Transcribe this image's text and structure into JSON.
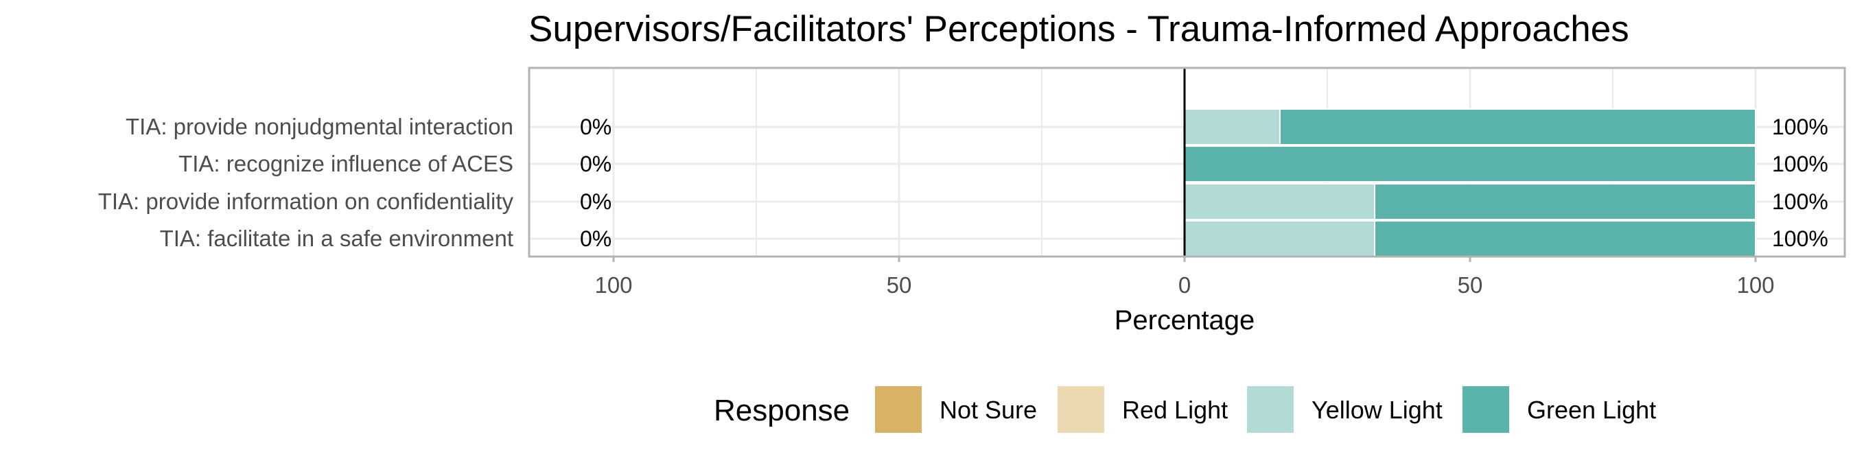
{
  "chart_data": {
    "type": "bar",
    "orientation": "horizontal-diverging",
    "title": "Supervisors/Facilitators' Perceptions - Trauma-Informed Approaches",
    "xlabel": "Percentage",
    "ylabel": "",
    "xlim": [
      -115,
      115
    ],
    "x_ticks": [
      -100,
      -50,
      0,
      50,
      100
    ],
    "x_tick_labels": [
      "100",
      "50",
      "0",
      "50",
      "100"
    ],
    "grid": true,
    "legend_position": "bottom",
    "legend_title": "Response",
    "categories": [
      "TIA: provide nonjudgmental interaction",
      "TIA: recognize influence of ACES",
      "TIA: provide information on confidentiality",
      "TIA: facilitate in a safe environment"
    ],
    "series": [
      {
        "name": "Not Sure",
        "color": "#d8b365",
        "side": "negative",
        "values": [
          0,
          0,
          0,
          0
        ]
      },
      {
        "name": "Red Light",
        "color": "#ebd9b2",
        "side": "negative",
        "values": [
          0,
          0,
          0,
          0
        ]
      },
      {
        "name": "Yellow Light",
        "color": "#b2dbd6",
        "side": "positive",
        "values": [
          16.7,
          0,
          33.3,
          33.3
        ]
      },
      {
        "name": "Green Light",
        "color": "#5ab4ac",
        "side": "positive",
        "values": [
          83.3,
          100,
          66.7,
          66.7
        ]
      }
    ],
    "left_labels": [
      "0%",
      "0%",
      "0%",
      "0%"
    ],
    "right_labels": [
      "100%",
      "100%",
      "100%",
      "100%"
    ]
  }
}
